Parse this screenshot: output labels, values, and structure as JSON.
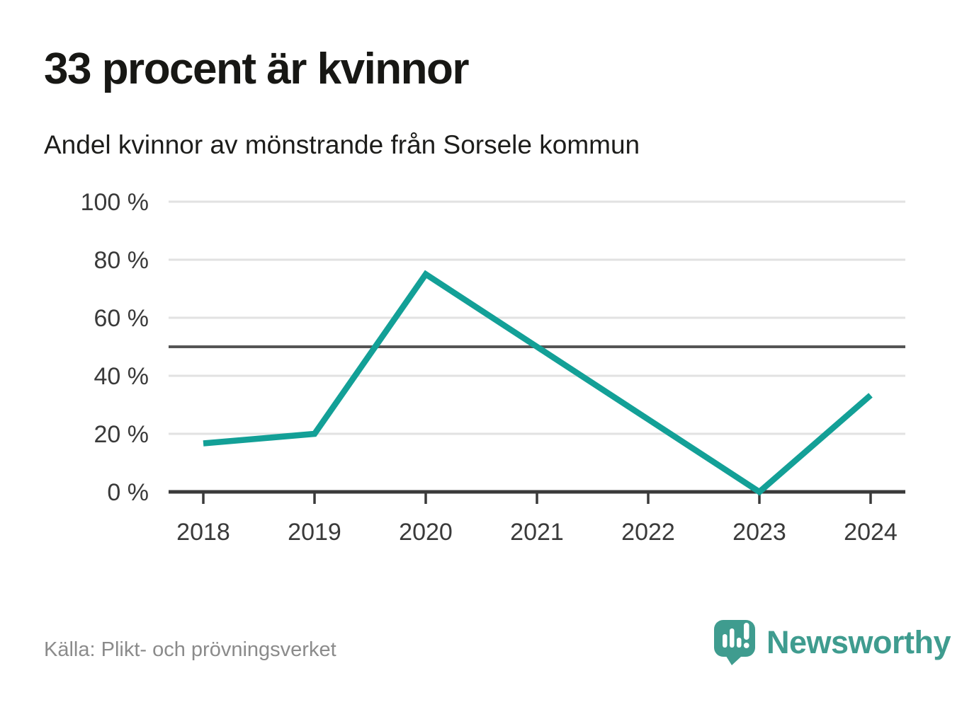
{
  "header": {
    "title": "33 procent är kvinnor",
    "subtitle": "Andel kvinnor av mönstrande från Sorsele kommun"
  },
  "chart_data": {
    "type": "line",
    "title": "33 procent är kvinnor",
    "subtitle": "Andel kvinnor av mönstrande från Sorsele kommun",
    "categories": [
      "2018",
      "2019",
      "2020",
      "2021",
      "2022",
      "2023",
      "2024"
    ],
    "values": [
      16.7,
      20,
      75,
      50,
      25,
      0,
      33.3
    ],
    "unit": "%",
    "xlabel": "",
    "ylabel": "",
    "ylim": [
      0,
      100
    ],
    "yticks": [
      0,
      20,
      40,
      60,
      80,
      100
    ],
    "ytick_labels": [
      "0 %",
      "20 %",
      "40 %",
      "60 %",
      "80 %",
      "100 %"
    ],
    "reference_line": 50,
    "grid": "horizontal",
    "legend": "none"
  },
  "footer": {
    "source": "Källa: Plikt- och prövningsverket",
    "brand": "Newsworthy"
  },
  "colors": {
    "line": "#13a097",
    "axis": "#3a3a3a",
    "grid": "#e2e2e2",
    "reference": "#555555",
    "label_text": "#3a3a3a",
    "brand_teal": "#3f9c8f",
    "background": "#ffffff"
  }
}
